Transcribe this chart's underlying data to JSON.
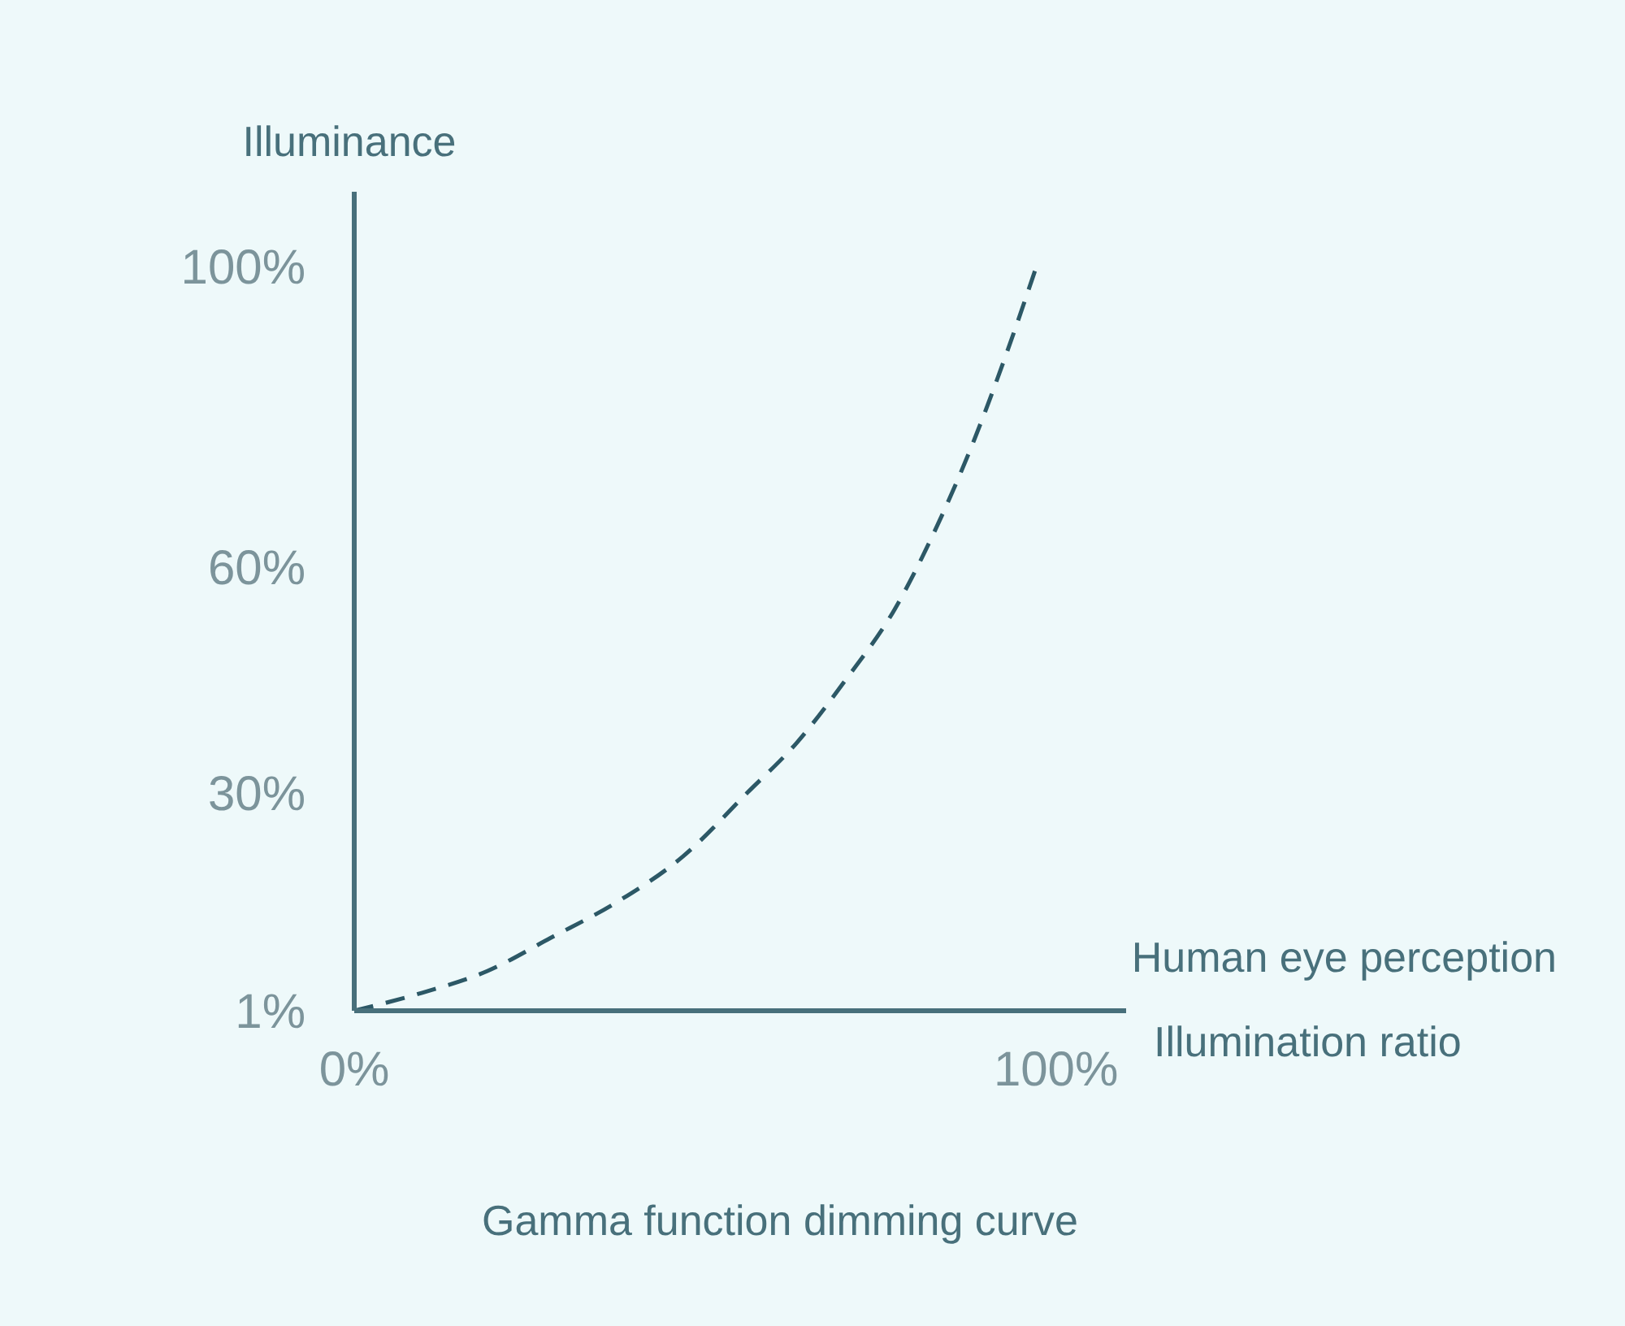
{
  "chart_data": {
    "type": "line",
    "title": "Gamma function dimming curve",
    "ylabel": "Illuminance",
    "xlabel": "Illumination ratio",
    "annotations": [
      "Human eye perception"
    ],
    "x": [
      0,
      9.7,
      19,
      28,
      37.5,
      46.8,
      56,
      63,
      70,
      77,
      82.6,
      88.4,
      93,
      97.2
    ],
    "series": [
      {
        "color": "#2c5866",
        "values": [
          1,
          3.4,
          6.3,
          10.7,
          15.5,
          21.5,
          30,
          36.6,
          45,
          54.4,
          64.6,
          77.1,
          88.6,
          100
        ]
      }
    ],
    "xlim": [
      0,
      110
    ],
    "xticks": [
      {
        "value": 0,
        "label": "0%"
      },
      {
        "value": 100,
        "label": "100%"
      }
    ],
    "ylim": [
      1,
      110
    ],
    "yticks": [
      {
        "value": 1,
        "label": "1%"
      },
      {
        "value": 30,
        "label": "30%"
      },
      {
        "value": 60,
        "label": "60%"
      },
      {
        "value": 100,
        "label": "100%"
      }
    ],
    "grid": false,
    "marker": "none",
    "line_style": "dashed"
  }
}
